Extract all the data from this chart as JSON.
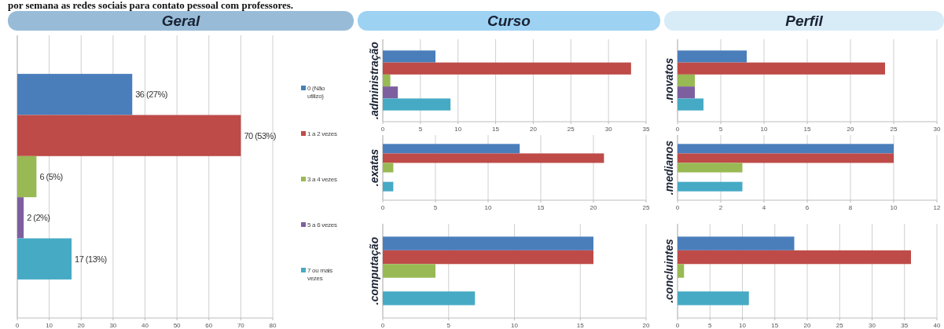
{
  "chart_data": [
    {
      "type": "bar",
      "orientation": "horizontal",
      "title": "Geral",
      "annotations": [
        "por semana as redes sociais para contato pessoal com professores."
      ],
      "categories": [
        null
      ],
      "series": [
        {
          "name": "0 (Não utilizo)",
          "color": "#4a7ebb",
          "values": [
            36
          ],
          "value_labels": [
            "36 (27%)"
          ]
        },
        {
          "name": "1 a 2 vezes",
          "color": "#be4b48",
          "values": [
            70
          ],
          "value_labels": [
            "70 (53%)"
          ]
        },
        {
          "name": "3 a 4 vezes",
          "color": "#98b954",
          "values": [
            6
          ],
          "value_labels": [
            "6 (5%)"
          ]
        },
        {
          "name": "5 a 6 vezes",
          "color": "#7d5fa0",
          "values": [
            2
          ],
          "value_labels": [
            "2 (2%)"
          ]
        },
        {
          "name": "7 ou mais vezes",
          "color": "#46aac5",
          "values": [
            17
          ],
          "value_labels": [
            "17 (13%)"
          ]
        }
      ],
      "xlim": [
        0,
        80
      ],
      "xticks": [
        0,
        10,
        20,
        30,
        40,
        50,
        60,
        70,
        80
      ],
      "grid": "x",
      "legend": "right"
    },
    {
      "type": "bar",
      "orientation": "horizontal",
      "title": "Curso",
      "categories": [
        ".administração"
      ],
      "series": [
        {
          "color": "#4a7ebb",
          "values": [
            7
          ]
        },
        {
          "color": "#be4b48",
          "values": [
            33
          ]
        },
        {
          "color": "#98b954",
          "values": [
            1
          ]
        },
        {
          "color": "#7d5fa0",
          "values": [
            2
          ]
        },
        {
          "color": "#46aac5",
          "values": [
            9
          ]
        }
      ],
      "xlim": [
        0,
        35
      ],
      "xticks": [
        0,
        5,
        10,
        15,
        20,
        25,
        30,
        35
      ],
      "grid": "x"
    },
    {
      "type": "bar",
      "orientation": "horizontal",
      "categories": [
        ".exatas"
      ],
      "series": [
        {
          "color": "#4a7ebb",
          "values": [
            13
          ]
        },
        {
          "color": "#be4b48",
          "values": [
            21
          ]
        },
        {
          "color": "#98b954",
          "values": [
            1
          ]
        },
        {
          "color": "#7d5fa0",
          "values": [
            0
          ]
        },
        {
          "color": "#46aac5",
          "values": [
            1
          ]
        }
      ],
      "xlim": [
        0,
        25
      ],
      "xticks": [
        0,
        5,
        10,
        15,
        20,
        25
      ],
      "grid": "x"
    },
    {
      "type": "bar",
      "orientation": "horizontal",
      "categories": [
        ".computação"
      ],
      "series": [
        {
          "color": "#4a7ebb",
          "values": [
            16
          ]
        },
        {
          "color": "#be4b48",
          "values": [
            16
          ]
        },
        {
          "color": "#98b954",
          "values": [
            4
          ]
        },
        {
          "color": "#7d5fa0",
          "values": [
            0
          ]
        },
        {
          "color": "#46aac5",
          "values": [
            7
          ]
        }
      ],
      "xlim": [
        0,
        20
      ],
      "xticks": [
        0,
        5,
        10,
        15,
        20
      ],
      "grid": "x"
    },
    {
      "type": "bar",
      "orientation": "horizontal",
      "title": "Perfil",
      "categories": [
        ".novatos"
      ],
      "series": [
        {
          "color": "#4a7ebb",
          "values": [
            8
          ]
        },
        {
          "color": "#be4b48",
          "values": [
            24
          ]
        },
        {
          "color": "#98b954",
          "values": [
            2
          ]
        },
        {
          "color": "#7d5fa0",
          "values": [
            2
          ]
        },
        {
          "color": "#46aac5",
          "values": [
            3
          ]
        }
      ],
      "xlim": [
        0,
        30
      ],
      "xticks": [
        0,
        5,
        10,
        15,
        20,
        25,
        30
      ],
      "grid": "x"
    },
    {
      "type": "bar",
      "orientation": "horizontal",
      "categories": [
        ".medianos"
      ],
      "series": [
        {
          "color": "#4a7ebb",
          "values": [
            10
          ]
        },
        {
          "color": "#be4b48",
          "values": [
            10
          ]
        },
        {
          "color": "#98b954",
          "values": [
            3
          ]
        },
        {
          "color": "#7d5fa0",
          "values": [
            0
          ]
        },
        {
          "color": "#46aac5",
          "values": [
            3
          ]
        }
      ],
      "xlim": [
        0,
        12
      ],
      "xticks": [
        0,
        2,
        4,
        6,
        8,
        10,
        12
      ],
      "grid": "x"
    },
    {
      "type": "bar",
      "orientation": "horizontal",
      "categories": [
        ".concluintes"
      ],
      "series": [
        {
          "color": "#4a7ebb",
          "values": [
            18
          ]
        },
        {
          "color": "#be4b48",
          "values": [
            36
          ]
        },
        {
          "color": "#98b954",
          "values": [
            1
          ]
        },
        {
          "color": "#7d5fa0",
          "values": [
            0
          ]
        },
        {
          "color": "#46aac5",
          "values": [
            11
          ]
        }
      ],
      "xlim": [
        0,
        40
      ],
      "xticks": [
        0,
        5,
        10,
        15,
        20,
        25,
        30,
        35,
        40
      ],
      "grid": "x"
    }
  ]
}
